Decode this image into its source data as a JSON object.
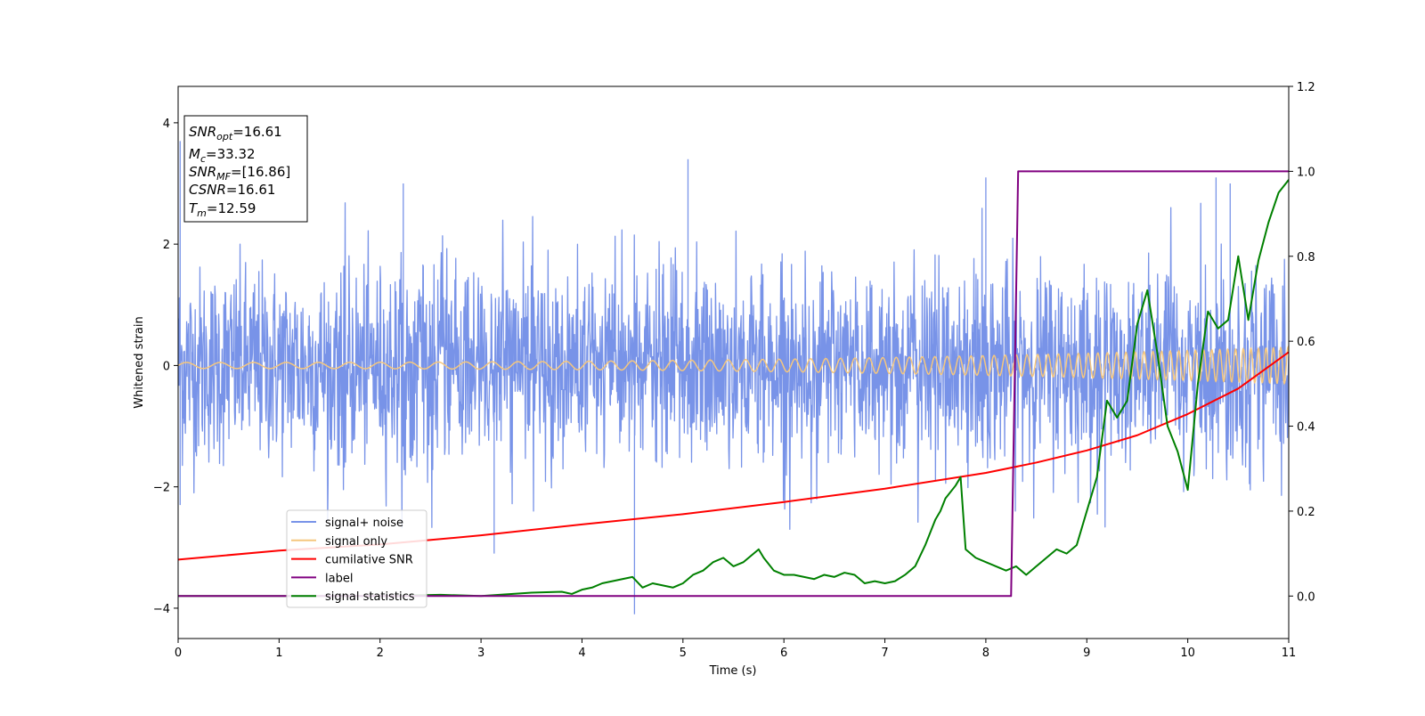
{
  "chart_data": {
    "type": "line",
    "xlabel": "Time (s)",
    "ylabel": "Whitened strain",
    "xlim": [
      0,
      11
    ],
    "ylim_left": [
      -4.5,
      4.6
    ],
    "ylim_right": [
      -0.1,
      1.2
    ],
    "x_ticks": [
      "0",
      "1",
      "2",
      "3",
      "4",
      "5",
      "6",
      "7",
      "8",
      "9",
      "10",
      "11"
    ],
    "y_left_ticks": [
      "−4",
      "−2",
      "0",
      "2",
      "4"
    ],
    "y_right_ticks": [
      "0.0",
      "0.2",
      "0.4",
      "0.6",
      "0.8",
      "1.0",
      "1.2"
    ],
    "grid": false,
    "legend_position": "lower-left",
    "stats_box": {
      "lines": [
        {
          "var": "SNR",
          "sub": "opt",
          "value": "=16.61"
        },
        {
          "var": "M",
          "sub": "c",
          "value": "=33.32"
        },
        {
          "var": "SNR",
          "sub": "MF",
          "value": "=[16.86]"
        },
        {
          "var": "CSNR",
          "sub": "",
          "value": "=16.61"
        },
        {
          "var": "T",
          "sub": "m",
          "value": "=12.59"
        }
      ]
    },
    "series": [
      {
        "name": "signal+ noise",
        "color": "#7893e8",
        "axis": "left",
        "noise_sigma": 0.8,
        "spike_peaks": [
          [
            0.02,
            3.7
          ],
          [
            0.02,
            -2.3
          ],
          [
            2.23,
            3.0
          ],
          [
            3.13,
            -3.1
          ],
          [
            4.52,
            -4.1
          ],
          [
            4.52,
            -3.0
          ],
          [
            5.05,
            3.4
          ],
          [
            8.0,
            3.1
          ],
          [
            10.28,
            3.1
          ],
          [
            10.42,
            3.0
          ]
        ]
      },
      {
        "name": "signal only",
        "color": "#f5c77e",
        "axis": "left",
        "amplitude_start": 0.05,
        "amplitude_end": 0.3,
        "freq_start_hz": 3.0,
        "freq_end_hz": 14.0
      },
      {
        "name": "cumilative SNR",
        "color": "#ff0000",
        "axis": "left",
        "x": [
          0,
          1,
          2,
          3,
          4,
          5,
          6,
          7,
          8,
          8.5,
          9,
          9.5,
          10,
          10.5,
          11
        ],
        "y": [
          -3.2,
          -3.05,
          -2.95,
          -2.8,
          -2.62,
          -2.45,
          -2.25,
          -2.03,
          -1.77,
          -1.6,
          -1.4,
          -1.15,
          -0.8,
          -0.38,
          0.22
        ]
      },
      {
        "name": "label",
        "color": "#800080",
        "axis": "right",
        "x": [
          0,
          8.25,
          8.32,
          11
        ],
        "y": [
          0,
          0,
          1.0,
          1.0
        ]
      },
      {
        "name": "signal statistics",
        "color": "#008000",
        "axis": "right",
        "x": [
          0,
          1,
          2,
          2.6,
          3.0,
          3.5,
          3.8,
          3.9,
          4.0,
          4.1,
          4.2,
          4.3,
          4.4,
          4.5,
          4.6,
          4.7,
          4.8,
          4.9,
          5.0,
          5.1,
          5.2,
          5.25,
          5.3,
          5.4,
          5.5,
          5.6,
          5.7,
          5.75,
          5.8,
          5.9,
          6.0,
          6.1,
          6.2,
          6.3,
          6.4,
          6.5,
          6.6,
          6.7,
          6.8,
          6.9,
          7.0,
          7.1,
          7.2,
          7.3,
          7.4,
          7.5,
          7.55,
          7.6,
          7.7,
          7.75,
          7.8,
          7.9,
          8.0,
          8.1,
          8.2,
          8.3,
          8.4,
          8.5,
          8.6,
          8.7,
          8.8,
          8.9,
          9.0,
          9.1,
          9.2,
          9.3,
          9.4,
          9.5,
          9.6,
          9.7,
          9.8,
          9.9,
          10.0,
          10.1,
          10.2,
          10.3,
          10.4,
          10.5,
          10.6,
          10.7,
          10.8,
          10.9,
          11.0
        ],
        "y": [
          0.0,
          0.0,
          0.0,
          0.003,
          0.0,
          0.008,
          0.01,
          0.005,
          0.015,
          0.02,
          0.03,
          0.035,
          0.04,
          0.045,
          0.02,
          0.03,
          0.025,
          0.02,
          0.03,
          0.05,
          0.06,
          0.07,
          0.08,
          0.09,
          0.07,
          0.08,
          0.1,
          0.11,
          0.09,
          0.06,
          0.05,
          0.05,
          0.045,
          0.04,
          0.05,
          0.045,
          0.055,
          0.05,
          0.03,
          0.035,
          0.03,
          0.035,
          0.05,
          0.07,
          0.12,
          0.18,
          0.2,
          0.23,
          0.26,
          0.28,
          0.11,
          0.09,
          0.08,
          0.07,
          0.06,
          0.07,
          0.05,
          0.07,
          0.09,
          0.11,
          0.1,
          0.12,
          0.2,
          0.28,
          0.46,
          0.42,
          0.46,
          0.64,
          0.72,
          0.57,
          0.4,
          0.34,
          0.25,
          0.5,
          0.67,
          0.63,
          0.65,
          0.8,
          0.65,
          0.79,
          0.88,
          0.95,
          0.98
        ]
      }
    ]
  }
}
